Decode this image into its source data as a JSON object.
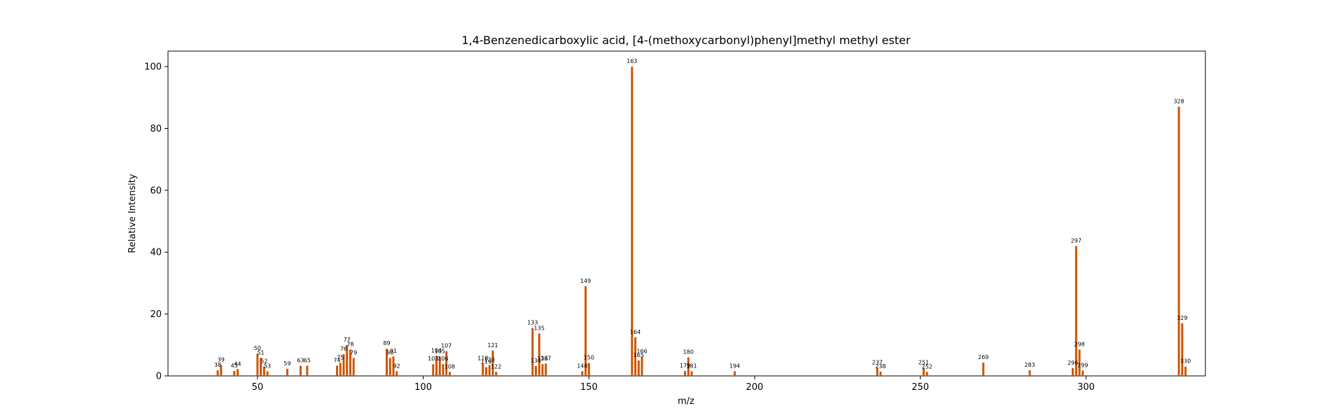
{
  "chart_data": {
    "type": "bar",
    "title": "1,4-Benzenedicarboxylic acid, [4-(methoxycarbonyl)phenyl]methyl methyl ester",
    "xlabel": "m/z",
    "ylabel": "Relative Intensity",
    "xlim": [
      23,
      336
    ],
    "ylim": [
      0,
      105
    ],
    "xticks": [
      50,
      100,
      150,
      200,
      250,
      300
    ],
    "yticks": [
      0,
      20,
      40,
      60,
      80,
      100
    ],
    "grid": false,
    "legend": "none",
    "bar_color": "#cc5500",
    "series": [
      {
        "peaks": [
          {
            "mz": 38,
            "intensity": 1.8,
            "label": "38"
          },
          {
            "mz": 39,
            "intensity": 3.5,
            "label": "39"
          },
          {
            "mz": 43,
            "intensity": 1.6,
            "label": "43"
          },
          {
            "mz": 44,
            "intensity": 2.2,
            "label": "44"
          },
          {
            "mz": 50,
            "intensity": 7.2,
            "label": "50"
          },
          {
            "mz": 51,
            "intensity": 5.8,
            "label": "51"
          },
          {
            "mz": 52,
            "intensity": 3.0,
            "label": "52"
          },
          {
            "mz": 53,
            "intensity": 1.5,
            "label": "53"
          },
          {
            "mz": 59,
            "intensity": 2.3,
            "label": "59"
          },
          {
            "mz": 63,
            "intensity": 3.3,
            "label": "63"
          },
          {
            "mz": 65,
            "intensity": 3.3,
            "label": "65"
          },
          {
            "mz": 74,
            "intensity": 3.3,
            "label": "74"
          },
          {
            "mz": 75,
            "intensity": 4.2,
            "label": "75"
          },
          {
            "mz": 76,
            "intensity": 7.0,
            "label": "76"
          },
          {
            "mz": 77,
            "intensity": 10.0,
            "label": "77"
          },
          {
            "mz": 78,
            "intensity": 8.5,
            "label": "78"
          },
          {
            "mz": 79,
            "intensity": 5.8,
            "label": "79"
          },
          {
            "mz": 89,
            "intensity": 8.8,
            "label": "89"
          },
          {
            "mz": 90,
            "intensity": 5.8,
            "label": "90"
          },
          {
            "mz": 91,
            "intensity": 6.3,
            "label": "91"
          },
          {
            "mz": 92,
            "intensity": 1.5,
            "label": "92"
          },
          {
            "mz": 103,
            "intensity": 3.8,
            "label": "103"
          },
          {
            "mz": 104,
            "intensity": 6.5,
            "label": "104"
          },
          {
            "mz": 105,
            "intensity": 6.2,
            "label": "105"
          },
          {
            "mz": 106,
            "intensity": 3.8,
            "label": "106"
          },
          {
            "mz": 107,
            "intensity": 8.0,
            "label": "107"
          },
          {
            "mz": 108,
            "intensity": 1.3,
            "label": "108"
          },
          {
            "mz": 118,
            "intensity": 4.0,
            "label": "118"
          },
          {
            "mz": 119,
            "intensity": 2.8,
            "label": "119"
          },
          {
            "mz": 120,
            "intensity": 3.5,
            "label": "120"
          },
          {
            "mz": 121,
            "intensity": 8.2,
            "label": "121"
          },
          {
            "mz": 122,
            "intensity": 1.3,
            "label": "122"
          },
          {
            "mz": 133,
            "intensity": 15.5,
            "label": "133"
          },
          {
            "mz": 134,
            "intensity": 3.2,
            "label": "134"
          },
          {
            "mz": 135,
            "intensity": 13.7,
            "label": "135"
          },
          {
            "mz": 136,
            "intensity": 3.8,
            "label": "136"
          },
          {
            "mz": 137,
            "intensity": 4.0,
            "label": "137"
          },
          {
            "mz": 148,
            "intensity": 1.5,
            "label": "148"
          },
          {
            "mz": 149,
            "intensity": 29.0,
            "label": "149"
          },
          {
            "mz": 150,
            "intensity": 4.2,
            "label": "150"
          },
          {
            "mz": 163,
            "intensity": 100.0,
            "label": "163"
          },
          {
            "mz": 164,
            "intensity": 12.5,
            "label": "164"
          },
          {
            "mz": 165,
            "intensity": 5.0,
            "label": "165"
          },
          {
            "mz": 166,
            "intensity": 6.2,
            "label": "166"
          },
          {
            "mz": 179,
            "intensity": 1.6,
            "label": "179"
          },
          {
            "mz": 180,
            "intensity": 6.0,
            "label": "180"
          },
          {
            "mz": 181,
            "intensity": 1.5,
            "label": "181"
          },
          {
            "mz": 194,
            "intensity": 1.5,
            "label": "194"
          },
          {
            "mz": 237,
            "intensity": 2.6,
            "label": "237"
          },
          {
            "mz": 238,
            "intensity": 1.4,
            "label": "238"
          },
          {
            "mz": 251,
            "intensity": 2.6,
            "label": "251"
          },
          {
            "mz": 252,
            "intensity": 1.3,
            "label": "252"
          },
          {
            "mz": 269,
            "intensity": 4.3,
            "label": "269"
          },
          {
            "mz": 283,
            "intensity": 1.8,
            "label": "283"
          },
          {
            "mz": 296,
            "intensity": 2.5,
            "label": "296"
          },
          {
            "mz": 297,
            "intensity": 42.0,
            "label": "297"
          },
          {
            "mz": 298,
            "intensity": 8.5,
            "label": "298"
          },
          {
            "mz": 299,
            "intensity": 1.7,
            "label": "299"
          },
          {
            "mz": 328,
            "intensity": 87.0,
            "label": "328"
          },
          {
            "mz": 329,
            "intensity": 17.0,
            "label": "329"
          },
          {
            "mz": 330,
            "intensity": 3.0,
            "label": "330"
          }
        ]
      }
    ]
  }
}
